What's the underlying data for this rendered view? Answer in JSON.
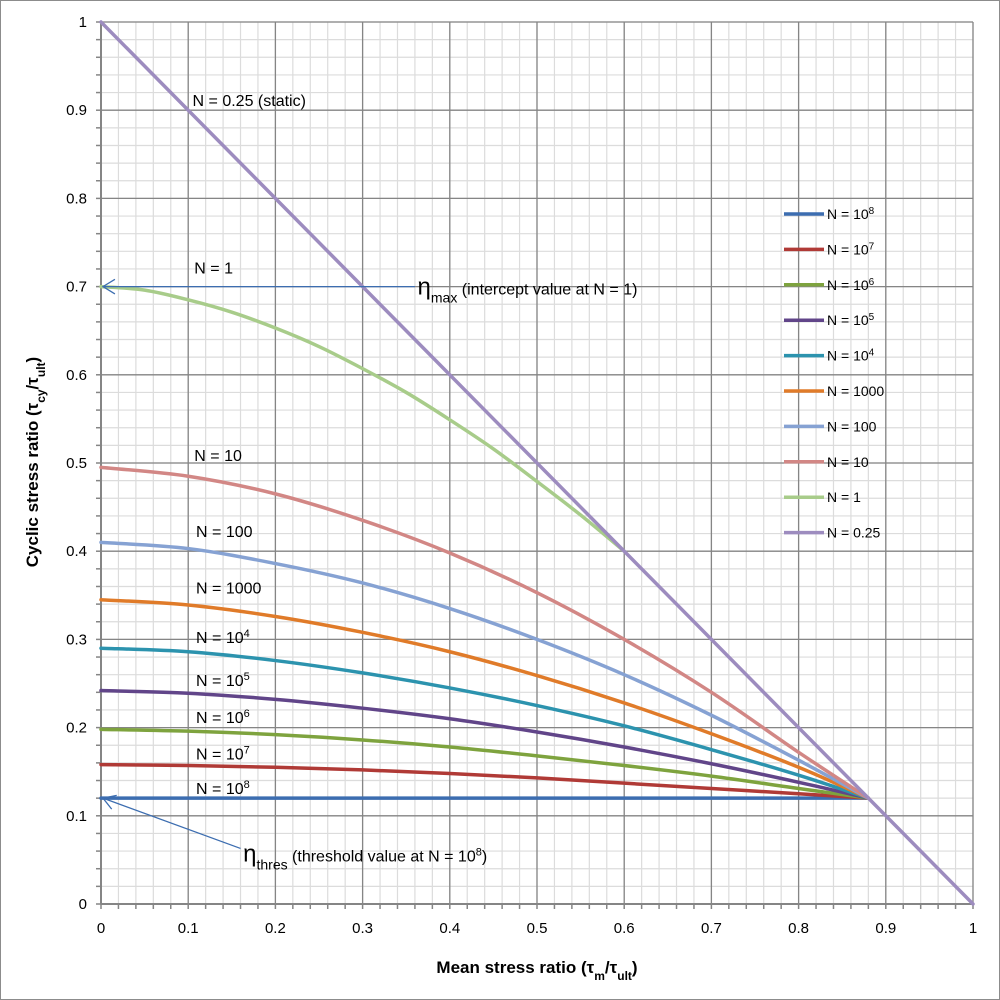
{
  "chart_data": {
    "type": "line",
    "title": "",
    "xlabel": {
      "main": "Mean stress ratio (",
      "tau": "τ",
      "sub1": "m",
      "slash": "/",
      "tau2": "τ",
      "sub2": "ult",
      "close": ")"
    },
    "ylabel": {
      "main": "Cyclic stress ratio (",
      "tau": "τ",
      "sub1": "cy",
      "slash": "/",
      "tau2": "τ",
      "sub2": "ult",
      "close": ")"
    },
    "xlim": [
      0,
      1
    ],
    "ylim": [
      0,
      1
    ],
    "x_ticks": [
      "0",
      "0.1",
      "0.2",
      "0.3",
      "0.4",
      "0.5",
      "0.6",
      "0.7",
      "0.8",
      "0.9",
      "1"
    ],
    "y_ticks": [
      "0",
      "0.1",
      "0.2",
      "0.3",
      "0.4",
      "0.5",
      "0.6",
      "0.7",
      "0.8",
      "0.9",
      "1"
    ],
    "x_tick_values": [
      0,
      0.1,
      0.2,
      0.3,
      0.4,
      0.5,
      0.6,
      0.7,
      0.8,
      0.9,
      1
    ],
    "y_tick_values": [
      0,
      0.1,
      0.2,
      0.3,
      0.4,
      0.5,
      0.6,
      0.7,
      0.8,
      0.9,
      1
    ],
    "minor_step": 0.02,
    "grid": true,
    "legend_position": "right",
    "series": [
      {
        "name": "N = 10^8",
        "legend_base": "N = 10",
        "legend_sup": "8",
        "color": "#3c6db0",
        "x": [
          0,
          0.88
        ],
        "y": [
          0.12,
          0.12
        ]
      },
      {
        "name": "N = 10^7",
        "legend_base": "N = 10",
        "legend_sup": "7",
        "color": "#b03a36",
        "x": [
          0,
          0.1,
          0.2,
          0.3,
          0.4,
          0.5,
          0.6,
          0.7,
          0.8,
          0.88
        ],
        "y": [
          0.158,
          0.157,
          0.155,
          0.152,
          0.148,
          0.143,
          0.137,
          0.131,
          0.125,
          0.12
        ]
      },
      {
        "name": "N = 10^6",
        "legend_base": "N = 10",
        "legend_sup": "6",
        "color": "#7ea33e",
        "x": [
          0,
          0.1,
          0.2,
          0.3,
          0.4,
          0.5,
          0.6,
          0.7,
          0.8,
          0.88
        ],
        "y": [
          0.198,
          0.196,
          0.192,
          0.186,
          0.178,
          0.168,
          0.157,
          0.145,
          0.131,
          0.12
        ]
      },
      {
        "name": "N = 10^5",
        "legend_base": "N = 10",
        "legend_sup": "5",
        "color": "#614589",
        "x": [
          0,
          0.1,
          0.2,
          0.3,
          0.4,
          0.5,
          0.6,
          0.7,
          0.8,
          0.88
        ],
        "y": [
          0.242,
          0.239,
          0.232,
          0.222,
          0.21,
          0.195,
          0.178,
          0.159,
          0.138,
          0.12
        ]
      },
      {
        "name": "N = 10^4",
        "legend_base": "N = 10",
        "legend_sup": "4",
        "color": "#2c93ae",
        "x": [
          0,
          0.1,
          0.2,
          0.3,
          0.4,
          0.5,
          0.6,
          0.7,
          0.8,
          0.88
        ],
        "y": [
          0.29,
          0.286,
          0.276,
          0.262,
          0.245,
          0.225,
          0.202,
          0.175,
          0.146,
          0.12
        ]
      },
      {
        "name": "N = 1000",
        "legend_base": "N = 1000",
        "legend_sup": "",
        "color": "#e07b29",
        "x": [
          0,
          0.1,
          0.2,
          0.3,
          0.4,
          0.5,
          0.6,
          0.7,
          0.8,
          0.88
        ],
        "y": [
          0.345,
          0.339,
          0.326,
          0.308,
          0.286,
          0.259,
          0.228,
          0.193,
          0.155,
          0.12
        ]
      },
      {
        "name": "N = 100",
        "legend_base": "N = 100",
        "legend_sup": "",
        "color": "#86a2d3",
        "x": [
          0,
          0.1,
          0.2,
          0.3,
          0.4,
          0.5,
          0.6,
          0.7,
          0.8,
          0.88
        ],
        "y": [
          0.41,
          0.403,
          0.386,
          0.364,
          0.335,
          0.3,
          0.26,
          0.214,
          0.163,
          0.12
        ]
      },
      {
        "name": "N = 10",
        "legend_base": "N = 10",
        "legend_sup": "",
        "color": "#d28785",
        "x": [
          0,
          0.1,
          0.2,
          0.3,
          0.4,
          0.5,
          0.6,
          0.7,
          0.8,
          0.88
        ],
        "y": [
          0.495,
          0.485,
          0.465,
          0.435,
          0.398,
          0.353,
          0.3,
          0.24,
          0.172,
          0.12
        ]
      },
      {
        "name": "N = 1",
        "legend_base": "N = 1",
        "legend_sup": "",
        "color": "#a8cc8a",
        "x": [
          0,
          0.05,
          0.1,
          0.15,
          0.2,
          0.25,
          0.3,
          0.35,
          0.4,
          0.45,
          0.5,
          0.55,
          0.6
        ],
        "y": [
          0.7,
          0.696,
          0.685,
          0.671,
          0.653,
          0.632,
          0.607,
          0.58,
          0.549,
          0.516,
          0.479,
          0.441,
          0.4
        ]
      },
      {
        "name": "N = 0.25",
        "legend_base": "N = 0.25",
        "legend_sup": "",
        "color": "#9d8cbf",
        "x": [
          0,
          1
        ],
        "y": [
          1,
          0
        ]
      }
    ],
    "curve_labels": [
      {
        "base": "N = 0.25 (static)",
        "sup": "",
        "x": 0.105,
        "y": 0.905
      },
      {
        "base": "N = 1",
        "sup": "",
        "x": 0.107,
        "y": 0.715
      },
      {
        "base": "N = 10",
        "sup": "",
        "x": 0.107,
        "y": 0.502
      },
      {
        "base": "N = 100",
        "sup": "",
        "x": 0.109,
        "y": 0.416
      },
      {
        "base": "N = 1000",
        "sup": "",
        "x": 0.109,
        "y": 0.352
      },
      {
        "base": "N = 10",
        "sup": "4",
        "x": 0.109,
        "y": 0.296
      },
      {
        "base": "N = 10",
        "sup": "5",
        "x": 0.109,
        "y": 0.247
      },
      {
        "base": "N = 10",
        "sup": "6",
        "x": 0.109,
        "y": 0.205
      },
      {
        "base": "N = 10",
        "sup": "7",
        "x": 0.109,
        "y": 0.164
      },
      {
        "base": "N = 10",
        "sup": "8",
        "x": 0.109,
        "y": 0.125
      }
    ],
    "annotations": [
      {
        "symbol": "η",
        "sub": "max",
        "text": " (intercept value at N = 1)",
        "text_sup": "",
        "text_end": "",
        "points_to": [
          0,
          0.7
        ],
        "from": [
          0.36,
          0.7
        ],
        "anchor": [
          0.363,
          0.7
        ]
      },
      {
        "symbol": "η",
        "sub": "thres",
        "text": " (threshold value at N = 10",
        "text_sup": "8",
        "text_end": ")",
        "points_to": [
          0,
          0.12
        ],
        "from": [
          0.16,
          0.063
        ],
        "anchor": [
          0.163,
          0.057
        ]
      }
    ],
    "annotation_arrow_color": "#3c6db0"
  }
}
